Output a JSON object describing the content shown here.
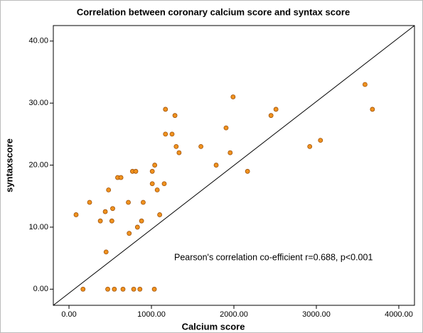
{
  "chart_data": {
    "type": "scatter",
    "title": "Correlation between coronary calcium score and syntax score",
    "x_label": "Calcium score",
    "y_label": "syntaxscore",
    "annotation": "Pearson's correlation co-efficient r=0.688, p<0.001",
    "color": "#f0921e",
    "xlim": [
      -190,
      4190
    ],
    "ylim": [
      -2.6,
      42.5
    ],
    "xticks": [
      {
        "value": 0,
        "label": "0.00"
      },
      {
        "value": 1000,
        "label": "1000.00"
      },
      {
        "value": 2000,
        "label": "2000.00"
      },
      {
        "value": 3000,
        "label": "3000.00"
      },
      {
        "value": 4000,
        "label": "4000.00"
      }
    ],
    "yticks": [
      {
        "value": 0,
        "label": "0.00"
      },
      {
        "value": 10,
        "label": "10.00"
      },
      {
        "value": 20,
        "label": "20.00"
      },
      {
        "value": 30,
        "label": "30.00"
      },
      {
        "value": 40,
        "label": "40.00"
      }
    ],
    "x": [
      86,
      250,
      170,
      380,
      440,
      450,
      480,
      470,
      530,
      520,
      550,
      590,
      630,
      655,
      720,
      730,
      770,
      810,
      785,
      830,
      860,
      880,
      900,
      1010,
      1010,
      1035,
      1040,
      1070,
      1100,
      1155,
      1170,
      1170,
      1250,
      1285,
      1300,
      1335,
      1600,
      1785,
      1905,
      1955,
      1990,
      2165,
      2450,
      2510,
      2920,
      3050,
      3590,
      3680
    ],
    "values": [
      12,
      14,
      0,
      11,
      12.5,
      6,
      16,
      0,
      13,
      11,
      0,
      18,
      18,
      0,
      14,
      9,
      19,
      19,
      0,
      10,
      0,
      11,
      14,
      19,
      17,
      0,
      20,
      16,
      12,
      17,
      29,
      25,
      25,
      28,
      23,
      22,
      23,
      20,
      26,
      22,
      31,
      19,
      28,
      29,
      23,
      24,
      33,
      29
    ]
  }
}
